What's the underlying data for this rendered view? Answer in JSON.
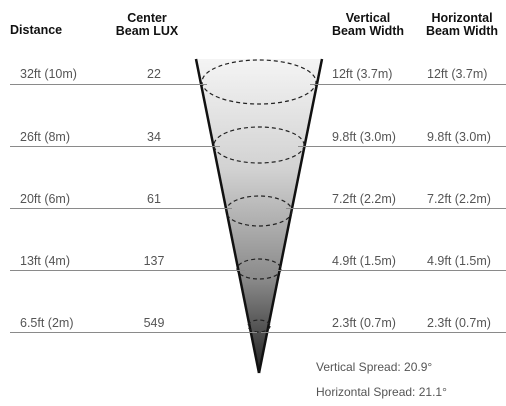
{
  "headers": {
    "distance": "Distance",
    "center_lux_line1": "Center",
    "center_lux_line2": "Beam LUX",
    "vertical_line1": "Vertical",
    "vertical_line2": "Beam Width",
    "horizontal_line1": "Horizontal",
    "horizontal_line2": "Beam Width"
  },
  "rows": [
    {
      "distance": "32ft (10m)",
      "lux": "22",
      "vertical": "12ft (3.7m)",
      "horizontal": "12ft (3.7m)"
    },
    {
      "distance": "26ft (8m)",
      "lux": "34",
      "vertical": "9.8ft (3.0m)",
      "horizontal": "9.8ft (3.0m)"
    },
    {
      "distance": "20ft (6m)",
      "lux": "61",
      "vertical": "7.2ft (2.2m)",
      "horizontal": "7.2ft (2.2m)"
    },
    {
      "distance": "13ft (4m)",
      "lux": "137",
      "vertical": "4.9ft (1.5m)",
      "horizontal": "4.9ft (1.5m)"
    },
    {
      "distance": "6.5ft (2m)",
      "lux": "549",
      "vertical": "2.3ft (0.7m)",
      "horizontal": "2.3ft (0.7m)"
    }
  ],
  "spread": {
    "vertical": "Vertical Spread: 20.9°",
    "horizontal": "Horizontal Spread: 21.1°"
  },
  "colors": {
    "line": "#8a8a8a",
    "beam_top": "#f2f2f2",
    "beam_bottom": "#2a2a2a",
    "cone_edge": "#111111"
  }
}
